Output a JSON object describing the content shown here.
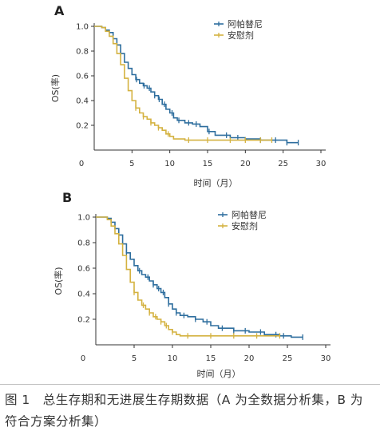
{
  "caption": "图 1　总生存期和无进展生存期数据（A 为全数据分析集，B 为符合方案分析集）",
  "colors": {
    "axis": "#333333",
    "text": "#333333"
  },
  "chart_data": [
    {
      "panel": "A",
      "type": "line",
      "title": "",
      "xlabel": "时间（月）",
      "ylabel": "OS(率)",
      "xlim": [
        0,
        30
      ],
      "ylim": [
        0,
        1.0
      ],
      "xticks": [
        0,
        5,
        10,
        15,
        20,
        25,
        30
      ],
      "yticks": [
        0.2,
        0.4,
        0.6,
        0.8,
        1.0
      ],
      "grid": false,
      "legend_position": "top-right",
      "series": [
        {
          "name": "阿帕替尼",
          "color": "#2e6e9e",
          "x": [
            0,
            1.0,
            1.5,
            2.0,
            2.5,
            3.0,
            3.5,
            4.0,
            4.5,
            5.0,
            5.5,
            6.0,
            6.5,
            7.0,
            7.5,
            8.0,
            8.5,
            9.0,
            9.5,
            10.0,
            10.5,
            11.0,
            12.0,
            13.0,
            14.0,
            15.0,
            16.0,
            18.0,
            20.0,
            22.0,
            24.0,
            25.5,
            27.0
          ],
          "y": [
            1.0,
            0.99,
            0.97,
            0.95,
            0.9,
            0.85,
            0.78,
            0.71,
            0.66,
            0.61,
            0.57,
            0.54,
            0.52,
            0.5,
            0.47,
            0.44,
            0.41,
            0.37,
            0.33,
            0.3,
            0.26,
            0.24,
            0.22,
            0.21,
            0.19,
            0.15,
            0.12,
            0.1,
            0.09,
            0.08,
            0.08,
            0.06,
            0.06
          ],
          "censored_x": [
            3.5,
            5.6,
            6.6,
            7.3,
            8.0,
            8.6,
            9.3,
            10.3,
            11.2,
            12.5,
            13.5,
            15.2,
            17.5,
            19.0,
            22.0,
            24.0,
            25.5,
            27.0
          ]
        },
        {
          "name": "安慰剂",
          "color": "#d4b240",
          "x": [
            0,
            1.0,
            1.5,
            2.0,
            2.5,
            3.0,
            3.5,
            4.0,
            4.5,
            5.0,
            5.5,
            6.0,
            6.5,
            7.0,
            7.5,
            8.0,
            8.5,
            9.0,
            9.5,
            10.0,
            10.5,
            12.0,
            14.0,
            16.0,
            18.0,
            20.0,
            22.0,
            23.5
          ],
          "y": [
            1.0,
            0.99,
            0.96,
            0.92,
            0.86,
            0.78,
            0.69,
            0.58,
            0.48,
            0.4,
            0.34,
            0.3,
            0.27,
            0.25,
            0.22,
            0.2,
            0.18,
            0.16,
            0.13,
            0.11,
            0.09,
            0.08,
            0.08,
            0.08,
            0.08,
            0.08,
            0.08,
            0.08
          ],
          "censored_x": [
            5.5,
            6.5,
            7.5,
            8.5,
            9.8,
            12.5,
            15.0,
            18.0,
            20.0,
            22.0,
            23.5
          ]
        }
      ]
    },
    {
      "panel": "B",
      "type": "line",
      "title": "",
      "xlabel": "时间（月）",
      "ylabel": "OS(率)",
      "xlim": [
        0,
        30
      ],
      "ylim": [
        0,
        1.0
      ],
      "xticks": [
        0,
        5,
        10,
        15,
        20,
        25,
        30
      ],
      "yticks": [
        0.2,
        0.4,
        0.6,
        0.8,
        1.0
      ],
      "grid": false,
      "legend_position": "top-right",
      "series": [
        {
          "name": "阿帕替尼",
          "color": "#2e6e9e",
          "x": [
            0,
            1.0,
            1.5,
            2.0,
            2.5,
            3.0,
            3.5,
            4.0,
            4.5,
            5.0,
            5.5,
            6.0,
            6.5,
            7.0,
            7.5,
            8.0,
            8.5,
            9.0,
            9.5,
            10.0,
            10.5,
            11.0,
            12.0,
            13.0,
            14.0,
            15.0,
            16.0,
            18.0,
            20.0,
            22.0,
            24.0,
            25.5,
            27.0
          ],
          "y": [
            1.0,
            1.0,
            0.99,
            0.96,
            0.91,
            0.86,
            0.79,
            0.72,
            0.67,
            0.62,
            0.58,
            0.55,
            0.53,
            0.5,
            0.47,
            0.44,
            0.41,
            0.37,
            0.32,
            0.28,
            0.25,
            0.23,
            0.22,
            0.2,
            0.18,
            0.15,
            0.13,
            0.11,
            0.1,
            0.08,
            0.07,
            0.06,
            0.06
          ],
          "censored_x": [
            4.0,
            5.7,
            6.8,
            7.5,
            8.2,
            8.8,
            9.5,
            10.5,
            11.5,
            13.0,
            14.5,
            16.5,
            18.0,
            19.5,
            21.5,
            23.5,
            24.5,
            27.0
          ]
        },
        {
          "name": "安慰剂",
          "color": "#d4b240",
          "x": [
            0,
            1.0,
            1.5,
            2.0,
            2.5,
            3.0,
            3.5,
            4.0,
            4.5,
            5.0,
            5.5,
            6.0,
            6.5,
            7.0,
            7.5,
            8.0,
            8.5,
            9.0,
            9.5,
            10.0,
            10.5,
            11.0,
            12.0,
            14.0,
            16.0,
            18.0,
            20.0,
            22.0,
            24.0
          ],
          "y": [
            1.0,
            1.0,
            0.98,
            0.93,
            0.87,
            0.79,
            0.7,
            0.59,
            0.49,
            0.41,
            0.35,
            0.31,
            0.28,
            0.25,
            0.22,
            0.2,
            0.18,
            0.15,
            0.12,
            0.1,
            0.08,
            0.07,
            0.07,
            0.07,
            0.07,
            0.07,
            0.07,
            0.07,
            0.07
          ],
          "censored_x": [
            5.0,
            6.2,
            7.0,
            7.8,
            8.5,
            9.2,
            10.0,
            12.0,
            15.0,
            18.0,
            21.0,
            24.0
          ]
        }
      ]
    }
  ]
}
